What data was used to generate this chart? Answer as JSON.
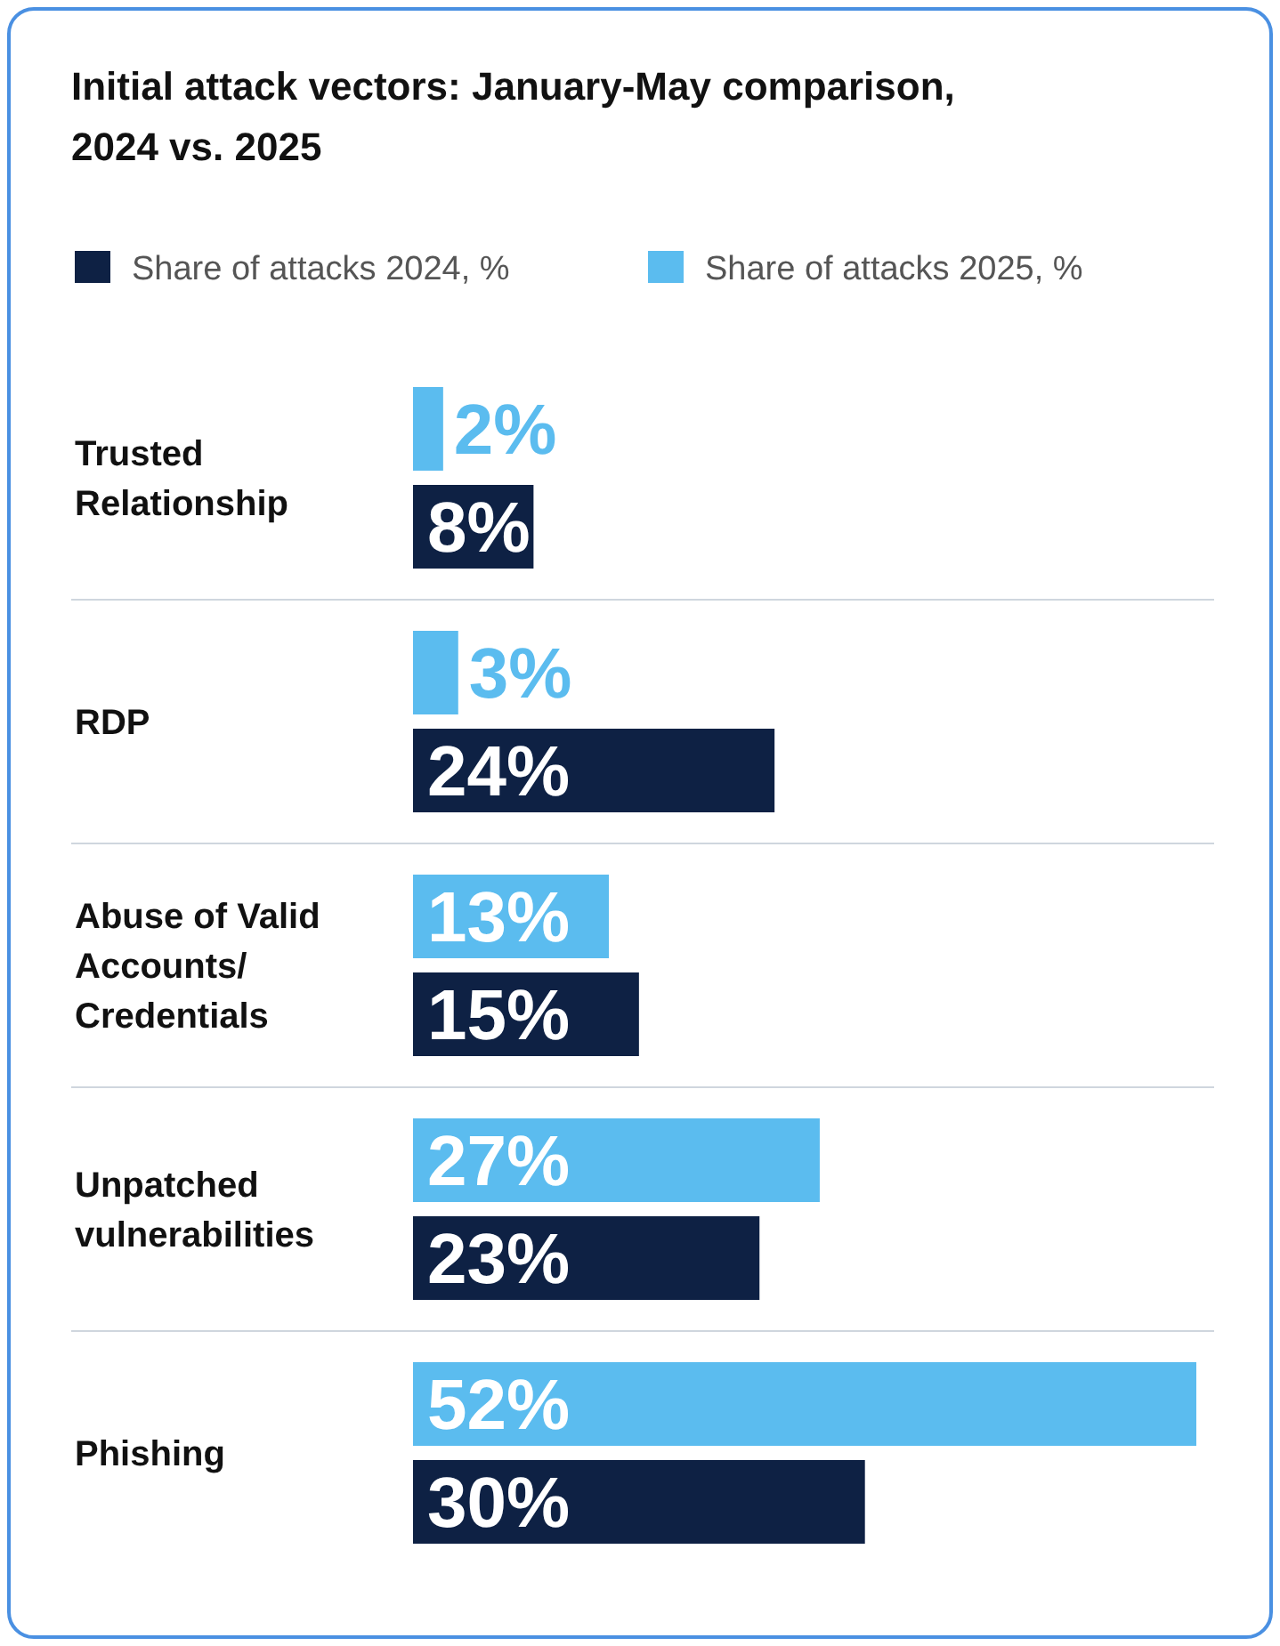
{
  "chart_data": {
    "type": "bar",
    "orientation": "horizontal",
    "title": "Initial attack vectors: January-May comparison, 2024 vs. 2025",
    "categories": [
      "Trusted Relationship",
      "RDP",
      "Abuse of Valid Accounts/ Credentials",
      "Unpatched vulnerabilities",
      "Phishing"
    ],
    "series": [
      {
        "name": "Share of attacks 2024, %",
        "color": "#0e2144",
        "values": [
          8,
          24,
          15,
          23,
          30
        ],
        "value_labels": [
          "8%",
          "24%",
          "15%",
          "23%",
          "30%"
        ]
      },
      {
        "name": "Share of attacks 2025, %",
        "color": "#5bbcef",
        "values": [
          2,
          3,
          13,
          27,
          52
        ],
        "value_labels": [
          "2%",
          "3%",
          "13%",
          "27%",
          "52%"
        ]
      }
    ],
    "legend": "top left"
  }
}
